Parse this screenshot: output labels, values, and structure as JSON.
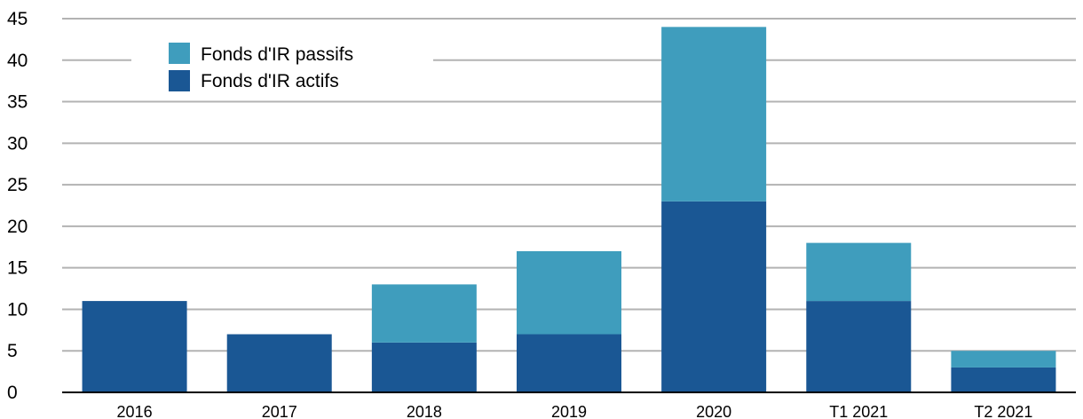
{
  "chart_data": {
    "type": "bar",
    "stacked": true,
    "categories": [
      "2016",
      "2017",
      "2018",
      "2019",
      "2020",
      "T1 2021",
      "T2 2021"
    ],
    "series": [
      {
        "name": "Fonds d'IR actifs",
        "values": [
          11,
          7,
          6,
          7,
          23,
          11,
          3
        ],
        "color": "#1a5794"
      },
      {
        "name": "Fonds d'IR passifs",
        "values": [
          0,
          0,
          7,
          10,
          21,
          7,
          2
        ],
        "color": "#3f9dbd"
      }
    ],
    "ylim": [
      0,
      45
    ],
    "yticks": [
      "0",
      "5",
      "10",
      "15",
      "20",
      "25",
      "30",
      "35",
      "40",
      "45"
    ],
    "grid": true,
    "legend_position": "top-left",
    "title": "",
    "xlabel": "",
    "ylabel": ""
  }
}
